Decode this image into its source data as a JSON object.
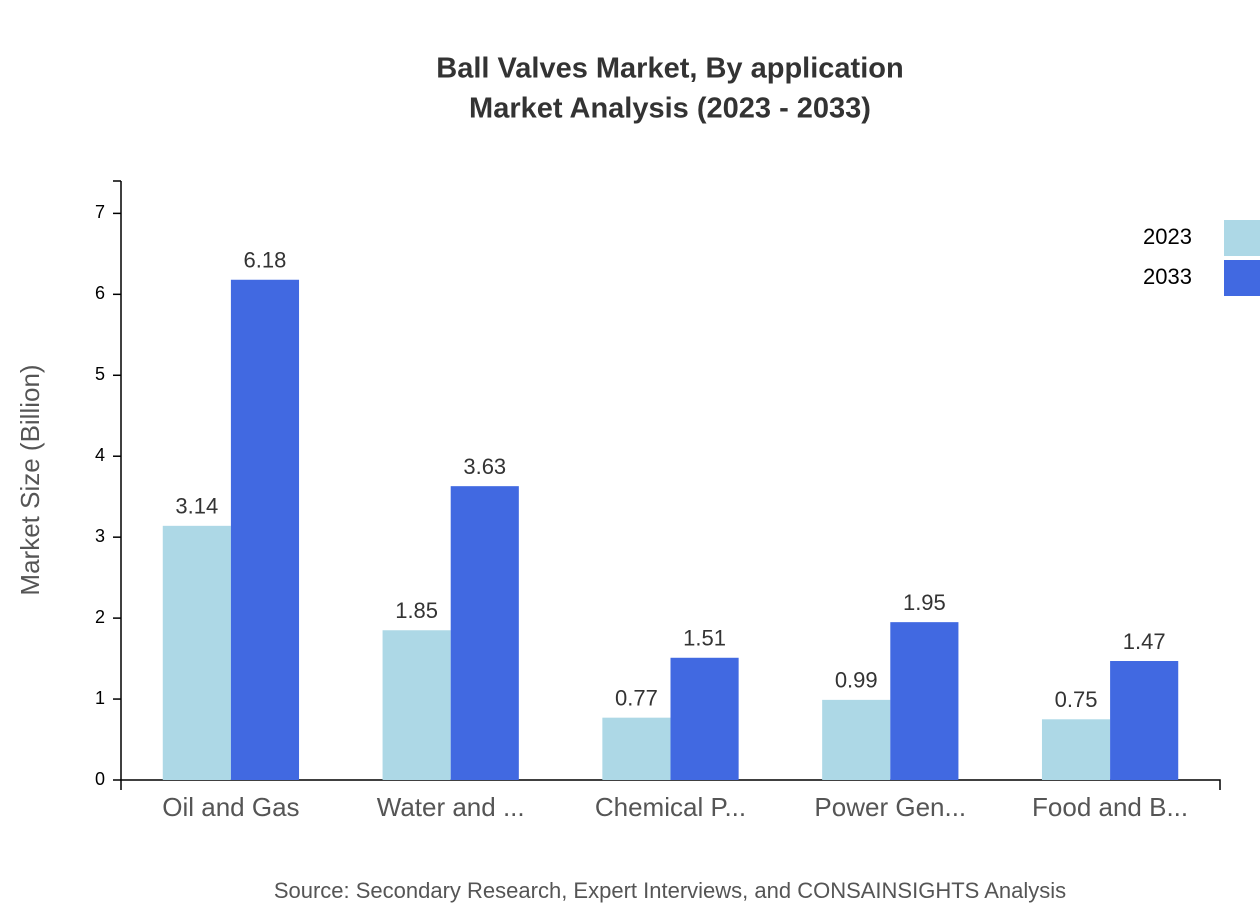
{
  "chart_data": {
    "type": "bar",
    "title": "Ball Valves Market, By application",
    "subtitle": "Market Analysis (2023 - 2033)",
    "y_label": "Market Size (Billion)",
    "source": "Source: Secondary Research, Expert Interviews, and CONSAINSIGHTS Analysis",
    "categories": [
      "Oil and Gas",
      "Water and ...",
      "Chemical P...",
      "Power Gen...",
      "Food and B..."
    ],
    "series": [
      {
        "name": "2023",
        "color": "#add8e6",
        "values": [
          3.14,
          1.85,
          0.77,
          0.99,
          0.75
        ]
      },
      {
        "name": "2033",
        "color": "#4169e1",
        "values": [
          6.18,
          3.63,
          1.51,
          1.95,
          1.47
        ]
      }
    ],
    "ylim": [
      0,
      7.4
    ],
    "yticks": [
      0,
      1,
      2,
      3,
      4,
      5,
      6,
      7
    ],
    "grid": false,
    "legend": "top-right"
  }
}
